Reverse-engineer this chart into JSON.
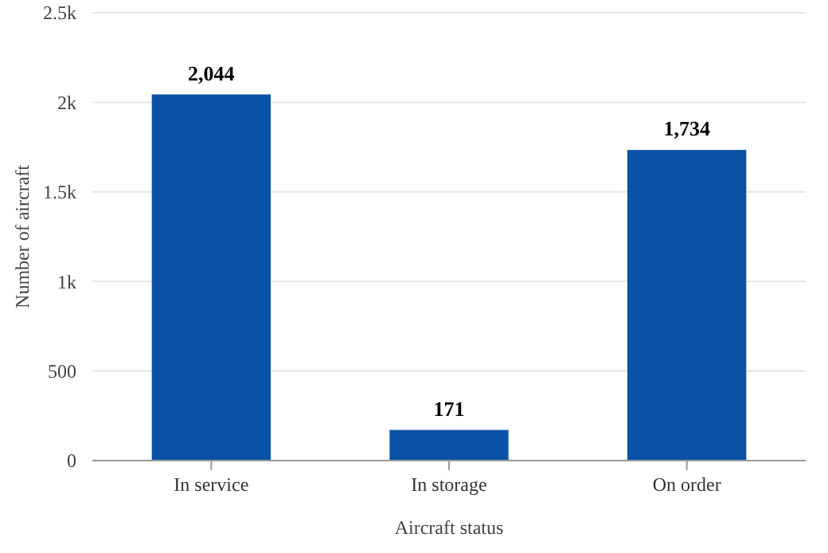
{
  "chart_data": {
    "type": "bar",
    "xlabel": "Aircraft status",
    "ylabel": "Number of aircraft",
    "categories": [
      "In service",
      "In storage",
      "On order"
    ],
    "values": [
      2044,
      171,
      1734
    ],
    "value_labels": [
      "2,044",
      "171",
      "1,734"
    ],
    "color": "#0a52a6",
    "ylim": [
      0,
      2500
    ],
    "yticks": [
      0,
      500,
      {
        "value": 1000,
        "label": "1k"
      },
      {
        "value": 1500,
        "label": "1.5k"
      },
      {
        "value": 2000,
        "label": "2k"
      },
      {
        "value": 2500,
        "label": "2.5k"
      }
    ],
    "grid": "y"
  }
}
